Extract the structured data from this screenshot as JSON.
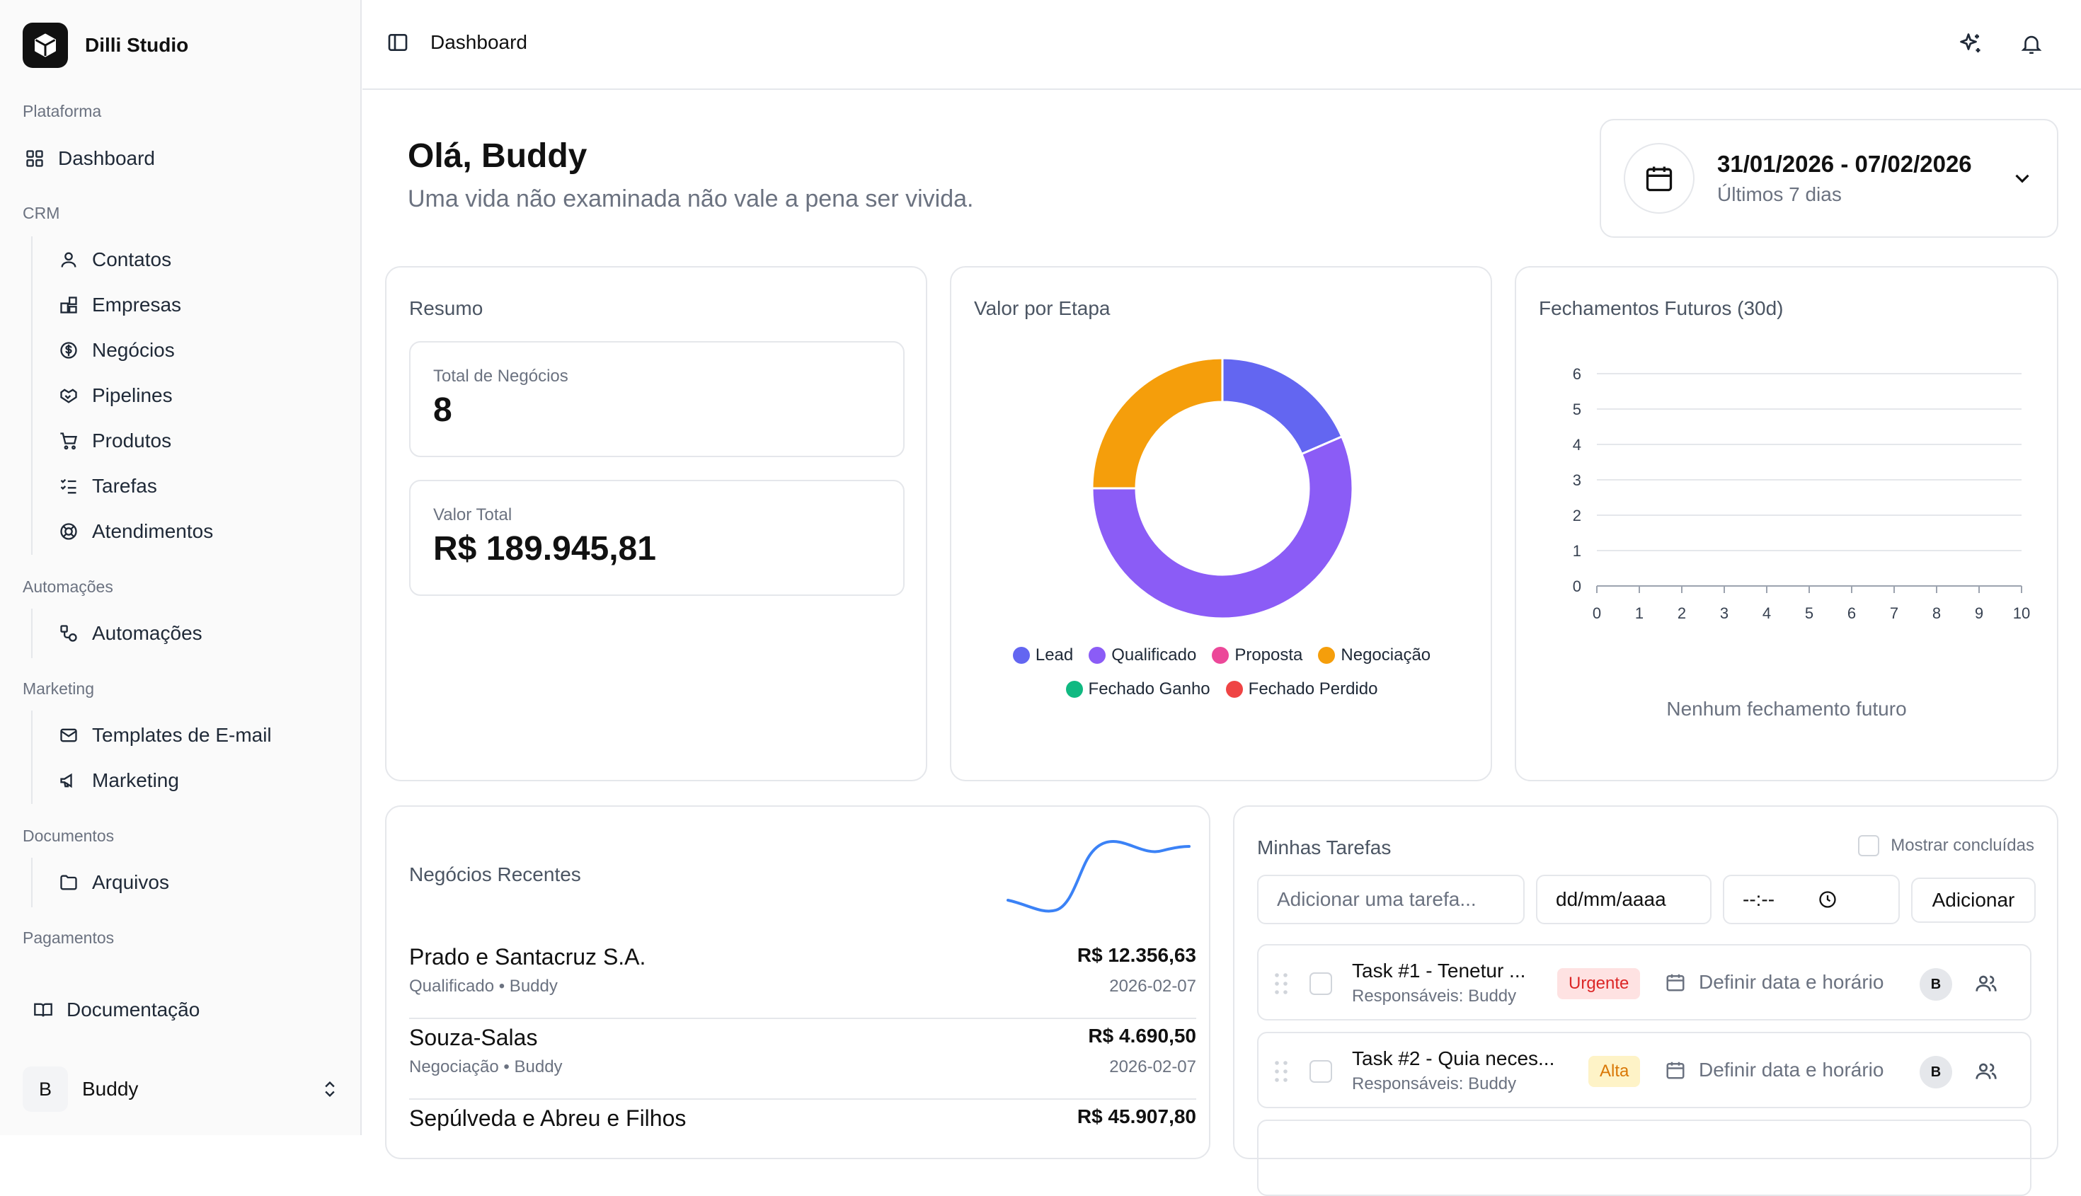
{
  "app": {
    "name": "Dilli Studio"
  },
  "sidebar": {
    "groups": {
      "plataforma": "Plataforma",
      "crm": "CRM",
      "automacoes": "Automações",
      "marketing": "Marketing",
      "documentos": "Documentos",
      "pagamentos": "Pagamentos"
    },
    "items": {
      "dashboard": "Dashboard",
      "contatos": "Contatos",
      "empresas": "Empresas",
      "negocios": "Negócios",
      "pipelines": "Pipelines",
      "produtos": "Produtos",
      "tarefas": "Tarefas",
      "atendimentos": "Atendimentos",
      "automacoes": "Automações",
      "templates": "Templates de E-mail",
      "marketing": "Marketing",
      "arquivos": "Arquivos",
      "documentacao": "Documentação"
    },
    "user": {
      "initial": "B",
      "name": "Buddy"
    }
  },
  "header": {
    "title": "Dashboard"
  },
  "greeting": {
    "title": "Olá, Buddy",
    "subtitle": "Uma vida não examinada não vale a pena ser vivida."
  },
  "date_filter": {
    "range": "31/01/2026 - 07/02/2026",
    "label": "Últimos 7 dias"
  },
  "summary": {
    "title": "Resumo",
    "total_label": "Total de Negócios",
    "total_value": "8",
    "valor_label": "Valor Total",
    "valor_value": "R$ 189.945,81"
  },
  "stage_chart": {
    "title": "Valor por Etapa",
    "legend": [
      {
        "name": "Lead",
        "color": "#6366f1"
      },
      {
        "name": "Qualificado",
        "color": "#8b5cf6"
      },
      {
        "name": "Proposta",
        "color": "#ec4899"
      },
      {
        "name": "Negociação",
        "color": "#f59e0b"
      },
      {
        "name": "Fechado Ganho",
        "color": "#10b981"
      },
      {
        "name": "Fechado Perdido",
        "color": "#ef4444"
      }
    ]
  },
  "chart_data": [
    {
      "type": "pie",
      "title": "Valor por Etapa",
      "categories": [
        "Lead",
        "Qualificado",
        "Proposta",
        "Negociação",
        "Fechado Ganho",
        "Fechado Perdido"
      ],
      "values": [
        18.5,
        56.5,
        0,
        25,
        0,
        0
      ],
      "colors": [
        "#6366f1",
        "#8b5cf6",
        "#ec4899",
        "#f59e0b",
        "#10b981",
        "#ef4444"
      ],
      "legend": "bottom"
    },
    {
      "type": "line",
      "title": "Fechamentos Futuros (30d)",
      "x_ticks": [
        "0",
        "1",
        "2",
        "3",
        "4",
        "5",
        "6",
        "7",
        "8",
        "9",
        "10"
      ],
      "y_ticks": [
        "0",
        "1",
        "2",
        "3",
        "4",
        "5",
        "6"
      ],
      "xlim": [
        0,
        10
      ],
      "ylim": [
        0,
        6
      ],
      "grid": true,
      "series": [],
      "empty_message": "Nenhum fechamento futuro"
    }
  ],
  "future": {
    "title": "Fechamentos Futuros (30d)",
    "empty": "Nenhum fechamento futuro"
  },
  "recent": {
    "title": "Negócios Recentes",
    "rows": [
      {
        "name": "Prado e Santacruz S.A.",
        "meta": "Qualificado • Buddy",
        "value": "R$ 12.356,63",
        "date": "2026-02-07"
      },
      {
        "name": "Souza-Salas",
        "meta": "Negociação • Buddy",
        "value": "R$ 4.690,50",
        "date": "2026-02-07"
      },
      {
        "name": "Sepúlveda e Abreu e Filhos",
        "meta": "",
        "value": "R$ 45.907,80",
        "date": ""
      }
    ]
  },
  "tasks": {
    "title": "Minhas Tarefas",
    "show_done": "Mostrar concluídas",
    "input_placeholder": "Adicionar uma tarefa...",
    "date_placeholder": "dd/mm/aaaa",
    "time_placeholder": "--:--",
    "add_button": "Adicionar",
    "items": [
      {
        "title": "Task #1 - Tenetur ...",
        "resp": "Responsáveis: Buddy",
        "priority": "Urgente",
        "date": "Definir data e horário",
        "avatar": "B"
      },
      {
        "title": "Task #2 - Quia neces...",
        "resp": "Responsáveis: Buddy",
        "priority": "Alta",
        "date": "Definir data e horário",
        "avatar": "B"
      }
    ]
  }
}
